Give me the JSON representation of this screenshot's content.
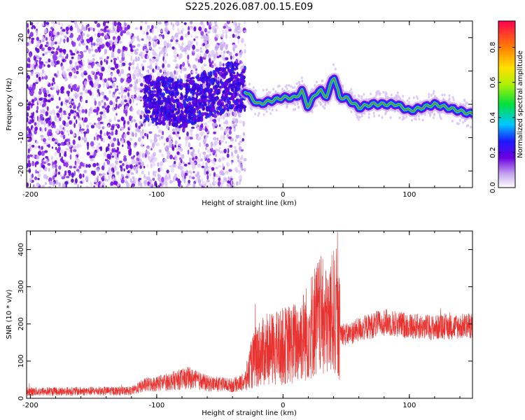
{
  "title": "S225.2026.087.00.15.E09",
  "colors": {
    "snr_line": "#e8322f",
    "axis": "#000000"
  },
  "chart_data": [
    {
      "type": "heatmap",
      "xlabel": "Height of straight line (km)",
      "ylabel": "Frequency (Hz)",
      "xlim": [
        -203,
        150
      ],
      "ylim": [
        -25,
        25
      ],
      "x_ticks": [
        -200,
        -100,
        0,
        100
      ],
      "y_ticks": [
        -20,
        -10,
        0,
        10,
        20
      ],
      "colorbar": {
        "label": "Normalized spectral amplitude",
        "range": [
          0,
          0.95
        ],
        "ticks": [
          0.0,
          0.2,
          0.4,
          0.6,
          0.8
        ]
      },
      "ridge": {
        "x": [
          -110,
          -100,
          -90,
          -80,
          -70,
          -60,
          -50,
          -40,
          -30,
          -20,
          -10,
          0,
          10,
          15,
          20,
          25,
          30,
          35,
          40,
          42,
          45,
          50,
          60,
          70,
          80,
          90,
          100,
          110,
          120,
          130,
          140,
          150
        ],
        "freq": [
          2,
          1,
          1,
          0,
          1,
          3,
          4,
          6,
          4,
          0,
          1,
          2,
          2,
          4,
          -1,
          3,
          4,
          2,
          9,
          6,
          2,
          2,
          -1,
          0,
          0,
          0,
          -2,
          -1,
          0,
          -1,
          -2,
          -3
        ]
      }
    },
    {
      "type": "line",
      "xlabel": "Height of straight line (km)",
      "ylabel": "SNR (10 * v/v)",
      "xlim": [
        -203,
        150
      ],
      "ylim": [
        0,
        450
      ],
      "x_ticks": [
        -200,
        -100,
        0,
        100
      ],
      "y_ticks": [
        0,
        100,
        200,
        300,
        400
      ],
      "envelope": {
        "x": [
          -203,
          -120,
          -110,
          -90,
          -75,
          -60,
          -40,
          -30,
          -25,
          -20,
          -10,
          0,
          10,
          20,
          25,
          30,
          35,
          40,
          45,
          50,
          60,
          80,
          100,
          120,
          150
        ],
        "mean": [
          18,
          20,
          35,
          45,
          55,
          40,
          35,
          45,
          90,
          120,
          130,
          140,
          150,
          180,
          210,
          220,
          200,
          230,
          180,
          170,
          185,
          205,
          195,
          190,
          195
        ]
      }
    }
  ]
}
